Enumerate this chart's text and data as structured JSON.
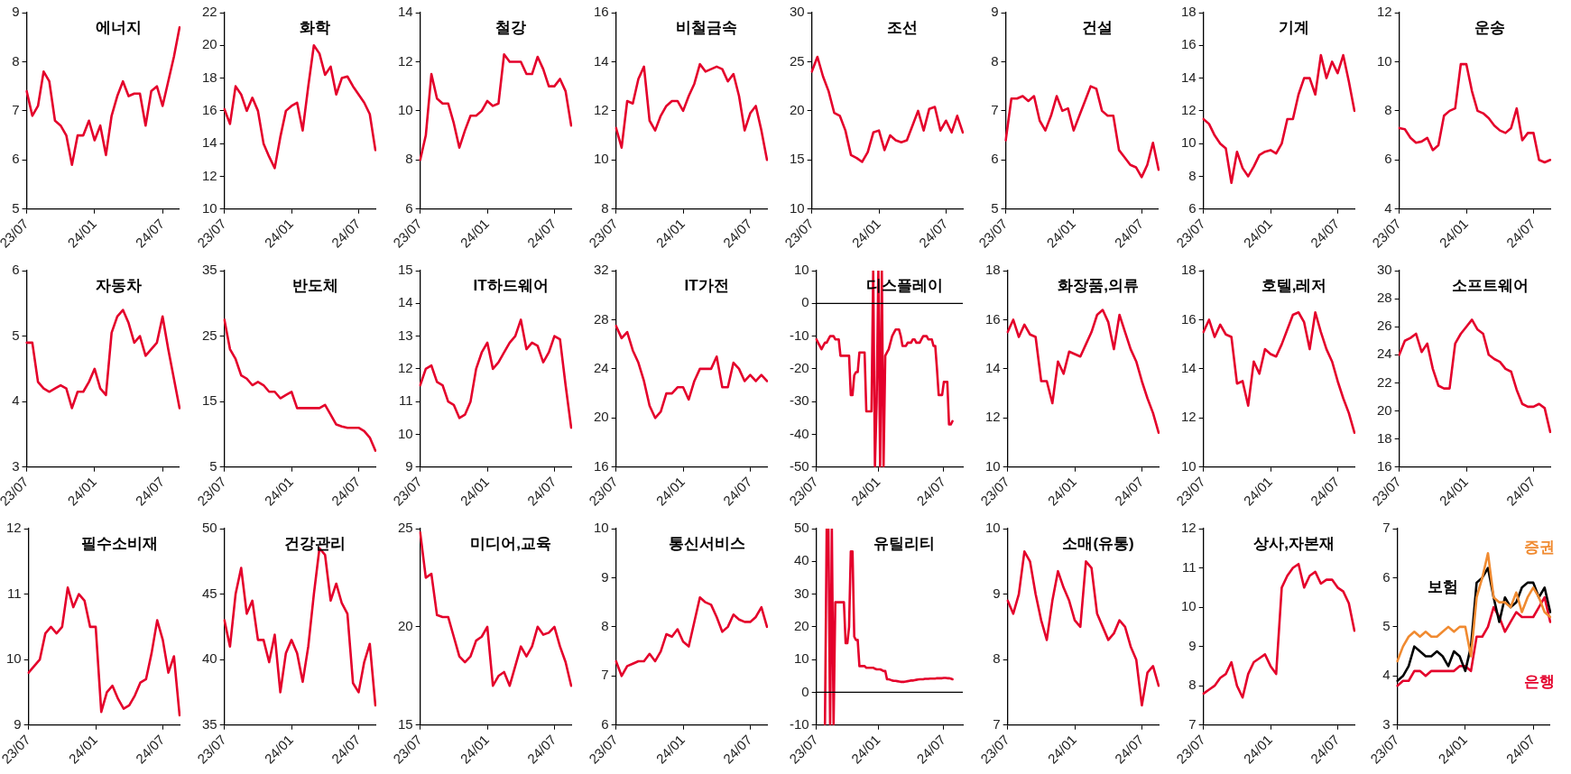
{
  "chart_data": [
    {
      "type": "line",
      "title": "에너지",
      "categories": [
        "23/07",
        null,
        null,
        null,
        null,
        null,
        null,
        null,
        null,
        null,
        null,
        null,
        "24/01",
        null,
        null,
        null,
        null,
        null,
        null,
        null,
        null,
        null,
        null,
        null,
        "24/07",
        null,
        null,
        null
      ],
      "series": [
        {
          "color": "#e4002b",
          "values": [
            7.4,
            6.9,
            7.1,
            7.8,
            7.6,
            6.8,
            6.7,
            6.5,
            5.9,
            6.5,
            6.5,
            6.8,
            6.4,
            6.7,
            6.1,
            6.9,
            7.3,
            7.6,
            7.3,
            7.35,
            7.35,
            6.7,
            7.4,
            7.5,
            7.1,
            7.6,
            8.1,
            8.7
          ]
        }
      ],
      "ylim": [
        5,
        9
      ],
      "yticks": [
        5,
        6,
        7,
        8,
        9
      ]
    },
    {
      "type": "line",
      "title": "화학",
      "categories": [
        "23/07",
        null,
        null,
        null,
        null,
        null,
        null,
        null,
        null,
        null,
        null,
        null,
        "24/01",
        null,
        null,
        null,
        null,
        null,
        null,
        null,
        null,
        null,
        null,
        null,
        "24/07",
        null,
        null,
        null
      ],
      "series": [
        {
          "color": "#e4002b",
          "values": [
            16.1,
            15.2,
            17.5,
            17.0,
            16.0,
            16.8,
            16.0,
            14.0,
            13.2,
            12.5,
            14.4,
            16.0,
            16.3,
            16.5,
            14.8,
            17.5,
            20.0,
            19.5,
            18.2,
            18.7,
            17.0,
            18.0,
            18.1,
            17.5,
            17.0,
            16.5,
            15.8,
            13.6
          ]
        }
      ],
      "ylim": [
        10,
        22
      ],
      "yticks": [
        10,
        12,
        14,
        16,
        18,
        20,
        22
      ]
    },
    {
      "type": "line",
      "title": "철강",
      "categories": [
        "23/07",
        null,
        null,
        null,
        null,
        null,
        null,
        null,
        null,
        null,
        null,
        null,
        "24/01",
        null,
        null,
        null,
        null,
        null,
        null,
        null,
        null,
        null,
        null,
        null,
        "24/07",
        null,
        null,
        null
      ],
      "series": [
        {
          "color": "#e4002b",
          "values": [
            8.0,
            9.0,
            11.5,
            10.5,
            10.3,
            10.3,
            9.5,
            8.5,
            9.2,
            9.8,
            9.8,
            10.0,
            10.4,
            10.2,
            10.3,
            12.3,
            12.0,
            12.0,
            12.0,
            11.5,
            11.5,
            12.2,
            11.7,
            11.0,
            11.0,
            11.3,
            10.8,
            9.4
          ]
        }
      ],
      "ylim": [
        6,
        14
      ],
      "yticks": [
        6,
        8,
        10,
        12,
        14
      ]
    },
    {
      "type": "line",
      "title": "비철금속",
      "categories": [
        "23/07",
        null,
        null,
        null,
        null,
        null,
        null,
        null,
        null,
        null,
        null,
        null,
        "24/01",
        null,
        null,
        null,
        null,
        null,
        null,
        null,
        null,
        null,
        null,
        null,
        "24/07",
        null,
        null,
        null
      ],
      "series": [
        {
          "color": "#e4002b",
          "values": [
            11.3,
            10.5,
            12.4,
            12.3,
            13.3,
            13.8,
            11.6,
            11.2,
            11.8,
            12.2,
            12.4,
            12.4,
            12.0,
            12.6,
            13.1,
            13.9,
            13.6,
            13.7,
            13.8,
            13.7,
            13.2,
            13.5,
            12.6,
            11.2,
            11.9,
            12.2,
            11.2,
            10.0
          ]
        }
      ],
      "ylim": [
        8,
        16
      ],
      "yticks": [
        8,
        10,
        12,
        14,
        16
      ]
    },
    {
      "type": "line",
      "title": "조선",
      "categories": [
        "23/07",
        null,
        null,
        null,
        null,
        null,
        null,
        null,
        null,
        null,
        null,
        null,
        "24/01",
        null,
        null,
        null,
        null,
        null,
        null,
        null,
        null,
        null,
        null,
        null,
        "24/07",
        null,
        null,
        null
      ],
      "series": [
        {
          "color": "#e4002b",
          "values": [
            24.0,
            25.5,
            23.5,
            22.0,
            19.8,
            19.5,
            18.0,
            15.5,
            15.2,
            14.8,
            15.8,
            17.8,
            18.0,
            16.0,
            17.5,
            17.0,
            16.8,
            17.0,
            18.5,
            20.0,
            18.0,
            20.2,
            20.4,
            18.0,
            19.0,
            17.8,
            19.5,
            17.8
          ]
        }
      ],
      "ylim": [
        10,
        30
      ],
      "yticks": [
        10,
        15,
        20,
        25,
        30
      ]
    },
    {
      "type": "line",
      "title": "건설",
      "categories": [
        "23/07",
        null,
        null,
        null,
        null,
        null,
        null,
        null,
        null,
        null,
        null,
        null,
        "24/01",
        null,
        null,
        null,
        null,
        null,
        null,
        null,
        null,
        null,
        null,
        null,
        "24/07",
        null,
        null,
        null
      ],
      "series": [
        {
          "color": "#e4002b",
          "values": [
            6.4,
            7.25,
            7.25,
            7.3,
            7.2,
            7.3,
            6.8,
            6.6,
            6.9,
            7.3,
            7.0,
            7.05,
            6.6,
            6.9,
            7.2,
            7.5,
            7.45,
            7.0,
            6.9,
            6.9,
            6.2,
            6.05,
            5.9,
            5.85,
            5.65,
            5.9,
            6.35,
            5.8
          ]
        }
      ],
      "ylim": [
        5,
        9
      ],
      "yticks": [
        5,
        6,
        7,
        8,
        9
      ]
    },
    {
      "type": "line",
      "title": "기계",
      "categories": [
        "23/07",
        null,
        null,
        null,
        null,
        null,
        null,
        null,
        null,
        null,
        null,
        null,
        "24/01",
        null,
        null,
        null,
        null,
        null,
        null,
        null,
        null,
        null,
        null,
        null,
        "24/07",
        null,
        null,
        null
      ],
      "series": [
        {
          "color": "#e4002b",
          "values": [
            11.5,
            11.2,
            10.5,
            10.0,
            9.7,
            7.6,
            9.5,
            8.5,
            8.0,
            8.6,
            9.3,
            9.5,
            9.6,
            9.4,
            10.0,
            11.5,
            11.5,
            13.0,
            14.0,
            14.0,
            13.0,
            15.4,
            14.0,
            15.0,
            14.3,
            15.4,
            13.8,
            12.0
          ]
        }
      ],
      "ylim": [
        6,
        18
      ],
      "yticks": [
        6,
        8,
        10,
        12,
        14,
        16,
        18
      ]
    },
    {
      "type": "line",
      "title": "운송",
      "categories": [
        "23/07",
        null,
        null,
        null,
        null,
        null,
        null,
        null,
        null,
        null,
        null,
        null,
        "24/01",
        null,
        null,
        null,
        null,
        null,
        null,
        null,
        null,
        null,
        null,
        null,
        "24/07",
        null,
        null,
        null
      ],
      "series": [
        {
          "color": "#e4002b",
          "values": [
            7.3,
            7.25,
            6.9,
            6.7,
            6.75,
            6.9,
            6.4,
            6.6,
            7.8,
            8.0,
            8.1,
            9.9,
            9.9,
            8.8,
            8.0,
            7.9,
            7.7,
            7.4,
            7.2,
            7.1,
            7.3,
            8.1,
            6.8,
            7.1,
            7.1,
            6.0,
            5.9,
            6.0
          ]
        }
      ],
      "ylim": [
        4,
        12
      ],
      "yticks": [
        4,
        6,
        8,
        10,
        12
      ]
    },
    {
      "type": "line",
      "title": "자동차",
      "categories": [
        "23/07",
        null,
        null,
        null,
        null,
        null,
        null,
        null,
        null,
        null,
        null,
        null,
        "24/01",
        null,
        null,
        null,
        null,
        null,
        null,
        null,
        null,
        null,
        null,
        null,
        "24/07",
        null,
        null,
        null
      ],
      "series": [
        {
          "color": "#e4002b",
          "values": [
            4.9,
            4.9,
            4.3,
            4.2,
            4.15,
            4.2,
            4.25,
            4.2,
            3.9,
            4.15,
            4.15,
            4.3,
            4.5,
            4.2,
            4.1,
            5.05,
            5.3,
            5.4,
            5.2,
            4.9,
            5.0,
            4.7,
            4.8,
            4.9,
            5.3,
            4.8,
            4.35,
            3.9
          ]
        }
      ],
      "ylim": [
        3,
        6
      ],
      "yticks": [
        3,
        4,
        5,
        6
      ]
    },
    {
      "type": "line",
      "title": "반도체",
      "categories": [
        "23/07",
        null,
        null,
        null,
        null,
        null,
        null,
        null,
        null,
        null,
        null,
        null,
        "24/01",
        null,
        null,
        null,
        null,
        null,
        null,
        null,
        null,
        null,
        null,
        null,
        "24/07",
        null,
        null,
        null
      ],
      "series": [
        {
          "color": "#e4002b",
          "values": [
            27.5,
            23.0,
            21.5,
            19.0,
            18.5,
            17.5,
            18.0,
            17.5,
            16.5,
            16.5,
            15.5,
            16.0,
            16.5,
            14.0,
            14.0,
            14.0,
            14.0,
            14.0,
            14.5,
            13.0,
            11.5,
            11.2,
            11.0,
            11.0,
            11.0,
            10.5,
            9.5,
            7.5
          ]
        }
      ],
      "ylim": [
        5,
        35
      ],
      "yticks": [
        5,
        15,
        25,
        35
      ]
    },
    {
      "type": "line",
      "title": "IT하드웨어",
      "categories": [
        "23/07",
        null,
        null,
        null,
        null,
        null,
        null,
        null,
        null,
        null,
        null,
        null,
        "24/01",
        null,
        null,
        null,
        null,
        null,
        null,
        null,
        null,
        null,
        null,
        null,
        "24/07",
        null,
        null,
        null
      ],
      "series": [
        {
          "color": "#e4002b",
          "values": [
            11.5,
            12.0,
            12.1,
            11.6,
            11.5,
            11.0,
            10.9,
            10.5,
            10.6,
            11.0,
            12.0,
            12.5,
            12.8,
            12.0,
            12.2,
            12.5,
            12.8,
            13.0,
            13.5,
            12.6,
            12.8,
            12.7,
            12.2,
            12.5,
            13.0,
            12.9,
            11.5,
            10.2
          ]
        }
      ],
      "ylim": [
        9,
        15
      ],
      "yticks": [
        9,
        10,
        11,
        12,
        13,
        14,
        15
      ]
    },
    {
      "type": "line",
      "title": "IT가전",
      "categories": [
        "23/07",
        null,
        null,
        null,
        null,
        null,
        null,
        null,
        null,
        null,
        null,
        null,
        "24/01",
        null,
        null,
        null,
        null,
        null,
        null,
        null,
        null,
        null,
        null,
        null,
        "24/07",
        null,
        null,
        null
      ],
      "series": [
        {
          "color": "#e4002b",
          "values": [
            27.5,
            26.5,
            27.0,
            25.5,
            24.5,
            23.0,
            21.0,
            20.0,
            20.5,
            22.0,
            22.0,
            22.5,
            22.5,
            21.5,
            23.0,
            24.0,
            24.0,
            24.0,
            25.0,
            22.5,
            22.5,
            24.5,
            24.0,
            23.0,
            23.5,
            23.0,
            23.5,
            23.0
          ]
        }
      ],
      "ylim": [
        16,
        32
      ],
      "yticks": [
        16,
        20,
        24,
        28,
        32
      ]
    },
    {
      "type": "line",
      "title": "디스플레이",
      "categories": [
        "23/07",
        null,
        null,
        null,
        null,
        null,
        null,
        null,
        null,
        null,
        null,
        null,
        null,
        null,
        null,
        null,
        null,
        null,
        null,
        null,
        null,
        null,
        null,
        null,
        null,
        null,
        null,
        null,
        null,
        null,
        null,
        null,
        null,
        null,
        null,
        null,
        "24/01",
        null,
        null,
        null,
        null,
        null,
        null,
        null,
        null,
        null,
        null,
        null,
        null,
        null,
        null,
        null,
        null,
        null,
        null,
        null,
        null,
        null,
        null,
        null,
        null,
        null,
        null,
        null,
        null,
        null,
        null,
        null,
        null,
        null,
        null,
        null,
        null,
        null,
        "24/07",
        null,
        null,
        null,
        null,
        null,
        null,
        null,
        null,
        null,
        null,
        null
      ],
      "series": [
        {
          "color": "#e4002b",
          "values": [
            -11,
            -12,
            -13,
            -14,
            -13,
            -12,
            -12,
            -11,
            -10,
            -10,
            -10,
            -11,
            -11,
            -11,
            -16,
            -16,
            -16,
            -16,
            -16,
            -16,
            -28,
            -28,
            -22,
            -21,
            -21,
            -15,
            -15,
            -15,
            -15,
            -33,
            -33,
            -33,
            -33,
            10,
            -50,
            -30,
            10,
            -50,
            10,
            -50,
            -16,
            -15,
            -14,
            -12,
            -10,
            -9,
            -8,
            -8,
            -8,
            -10,
            -13,
            -13,
            -13,
            -12,
            -12,
            -12,
            -11,
            -11,
            -12,
            -12,
            -12,
            -11,
            -10,
            -10,
            -10,
            -11,
            -11,
            -11,
            -13,
            -13,
            -20,
            -28,
            -28,
            -28,
            -24,
            -24,
            -24,
            -37,
            -37,
            -36,
            null,
            null,
            null,
            null,
            null,
            null
          ]
        }
      ],
      "ref_lines": [
        {
          "axis": "y",
          "value": 0,
          "color": "#000000"
        }
      ],
      "ylim": [
        -50,
        10
      ],
      "yticks": [
        -50,
        -40,
        -30,
        -20,
        -10,
        0,
        10
      ]
    },
    {
      "type": "line",
      "title": "화장품,의류",
      "categories": [
        "23/07",
        null,
        null,
        null,
        null,
        null,
        null,
        null,
        null,
        null,
        null,
        null,
        "24/01",
        null,
        null,
        null,
        null,
        null,
        null,
        null,
        null,
        null,
        null,
        null,
        "24/07",
        null,
        null,
        null
      ],
      "series": [
        {
          "color": "#e4002b",
          "values": [
            15.5,
            16.0,
            15.3,
            15.8,
            15.4,
            15.3,
            13.5,
            13.5,
            12.6,
            14.3,
            13.8,
            14.7,
            14.6,
            14.5,
            15.0,
            15.5,
            16.2,
            16.4,
            15.9,
            14.8,
            16.2,
            15.5,
            14.8,
            14.3,
            13.5,
            12.8,
            12.2,
            11.4
          ]
        }
      ],
      "ylim": [
        10,
        18
      ],
      "yticks": [
        10,
        12,
        14,
        16,
        18
      ]
    },
    {
      "type": "line",
      "title": "호텔,레저",
      "categories": [
        "23/07",
        null,
        null,
        null,
        null,
        null,
        null,
        null,
        null,
        null,
        null,
        null,
        "24/01",
        null,
        null,
        null,
        null,
        null,
        null,
        null,
        null,
        null,
        null,
        null,
        "24/07",
        null,
        null,
        null
      ],
      "series": [
        {
          "color": "#e4002b",
          "values": [
            15.5,
            16.0,
            15.3,
            15.8,
            15.4,
            15.3,
            13.4,
            13.5,
            12.5,
            14.3,
            13.8,
            14.8,
            14.6,
            14.5,
            15.0,
            15.6,
            16.2,
            16.3,
            15.9,
            14.8,
            16.3,
            15.5,
            14.8,
            14.3,
            13.5,
            12.8,
            12.2,
            11.4
          ]
        }
      ],
      "ylim": [
        10,
        18
      ],
      "yticks": [
        10,
        12,
        14,
        16,
        18
      ]
    },
    {
      "type": "line",
      "title": "소프트웨어",
      "categories": [
        "23/07",
        null,
        null,
        null,
        null,
        null,
        null,
        null,
        null,
        null,
        null,
        null,
        "24/01",
        null,
        null,
        null,
        null,
        null,
        null,
        null,
        null,
        null,
        null,
        null,
        "24/07",
        null,
        null,
        null
      ],
      "series": [
        {
          "color": "#e4002b",
          "values": [
            24.0,
            25.0,
            25.2,
            25.5,
            24.2,
            24.8,
            23.0,
            21.8,
            21.6,
            21.6,
            24.8,
            25.5,
            26.0,
            26.5,
            25.8,
            25.5,
            24.0,
            23.7,
            23.5,
            23.0,
            22.8,
            21.5,
            20.5,
            20.3,
            20.3,
            20.5,
            20.2,
            18.5
          ]
        }
      ],
      "ylim": [
        16,
        30
      ],
      "yticks": [
        16,
        18,
        20,
        22,
        24,
        26,
        28,
        30
      ]
    },
    {
      "type": "line",
      "title": "필수소비재",
      "categories": [
        "23/07",
        null,
        null,
        null,
        null,
        null,
        null,
        null,
        null,
        null,
        null,
        null,
        "24/01",
        null,
        null,
        null,
        null,
        null,
        null,
        null,
        null,
        null,
        null,
        null,
        "24/07",
        null,
        null,
        null
      ],
      "series": [
        {
          "color": "#e4002b",
          "values": [
            9.8,
            9.9,
            10.0,
            10.4,
            10.5,
            10.4,
            10.5,
            11.1,
            10.8,
            11.0,
            10.9,
            10.5,
            10.5,
            9.2,
            9.5,
            9.6,
            9.4,
            9.25,
            9.3,
            9.45,
            9.65,
            9.7,
            10.1,
            10.6,
            10.3,
            9.8,
            10.05,
            9.15
          ]
        }
      ],
      "ylim": [
        9,
        12
      ],
      "yticks": [
        9,
        10,
        11,
        12
      ]
    },
    {
      "type": "line",
      "title": "건강관리",
      "categories": [
        "23/07",
        null,
        null,
        null,
        null,
        null,
        null,
        null,
        null,
        null,
        null,
        null,
        "24/01",
        null,
        null,
        null,
        null,
        null,
        null,
        null,
        null,
        null,
        null,
        null,
        "24/07",
        null,
        null,
        null
      ],
      "series": [
        {
          "color": "#e4002b",
          "values": [
            43,
            41,
            45,
            47,
            43.5,
            44.5,
            41.5,
            41.5,
            39.8,
            41.9,
            37.5,
            40.5,
            41.5,
            40.5,
            38.3,
            41,
            45,
            48.5,
            48,
            44.5,
            45.8,
            44.3,
            43.5,
            38.2,
            37.5,
            39.8,
            41.2,
            36.5
          ]
        }
      ],
      "ylim": [
        35,
        50
      ],
      "yticks": [
        35,
        40,
        45,
        50
      ]
    },
    {
      "type": "line",
      "title": "미디어,교육",
      "categories": [
        "23/07",
        null,
        null,
        null,
        null,
        null,
        null,
        null,
        null,
        null,
        null,
        null,
        "24/01",
        null,
        null,
        null,
        null,
        null,
        null,
        null,
        null,
        null,
        null,
        null,
        "24/07",
        null,
        null,
        null
      ],
      "series": [
        {
          "color": "#e4002b",
          "values": [
            24.8,
            22.5,
            22.7,
            20.6,
            20.5,
            20.5,
            19.5,
            18.5,
            18.2,
            18.5,
            19.3,
            19.5,
            20.0,
            17.0,
            17.5,
            17.7,
            17.0,
            18.0,
            19.0,
            18.5,
            19.0,
            20.0,
            19.6,
            19.7,
            20.0,
            19.0,
            18.2,
            17.0
          ]
        }
      ],
      "ylim": [
        15,
        25
      ],
      "yticks": [
        15,
        20,
        25
      ]
    },
    {
      "type": "line",
      "title": "통신서비스",
      "categories": [
        "23/07",
        null,
        null,
        null,
        null,
        null,
        null,
        null,
        null,
        null,
        null,
        null,
        "24/01",
        null,
        null,
        null,
        null,
        null,
        null,
        null,
        null,
        null,
        null,
        null,
        "24/07",
        null,
        null,
        null
      ],
      "series": [
        {
          "color": "#e4002b",
          "values": [
            7.3,
            7.0,
            7.2,
            7.25,
            7.3,
            7.3,
            7.45,
            7.3,
            7.5,
            7.85,
            7.8,
            7.95,
            7.7,
            7.6,
            8.1,
            8.6,
            8.5,
            8.45,
            8.2,
            7.9,
            8.0,
            8.25,
            8.15,
            8.1,
            8.1,
            8.2,
            8.4,
            8.0
          ]
        }
      ],
      "ylim": [
        6,
        10
      ],
      "yticks": [
        6,
        7,
        8,
        9,
        10
      ]
    },
    {
      "type": "line",
      "title": "유틸리티",
      "categories": [
        "23/07",
        null,
        null,
        null,
        null,
        null,
        null,
        null,
        null,
        null,
        null,
        null,
        null,
        null,
        null,
        null,
        null,
        null,
        null,
        null,
        null,
        null,
        null,
        null,
        null,
        null,
        null,
        null,
        null,
        null,
        null,
        null,
        null,
        null,
        null,
        null,
        "24/01",
        null,
        null,
        null,
        null,
        null,
        null,
        null,
        null,
        null,
        null,
        null,
        null,
        null,
        null,
        null,
        null,
        null,
        null,
        null,
        null,
        null,
        null,
        null,
        null,
        null,
        null,
        null,
        null,
        null,
        null,
        null,
        null,
        null,
        null,
        null,
        null,
        null,
        "24/07",
        null,
        null,
        null,
        null,
        null,
        null,
        null,
        null,
        null,
        null,
        null
      ],
      "series": [
        {
          "color": "#e4002b",
          "values": [
            null,
            null,
            null,
            null,
            null,
            -10,
            50,
            50,
            -10,
            50,
            -10,
            27.5,
            27.5,
            27.5,
            27.5,
            27.5,
            27.5,
            15,
            15,
            20,
            43,
            43,
            17,
            16,
            16,
            8,
            8,
            8,
            8,
            7.5,
            7.5,
            7.5,
            7.5,
            7.5,
            7.2,
            7,
            7,
            7,
            6.8,
            6.5,
            6.5,
            4,
            4,
            3.8,
            3.6,
            3.5,
            3.5,
            3.4,
            3.3,
            3.2,
            3.2,
            3.2,
            3.3,
            3.4,
            3.5,
            3.6,
            3.6,
            3.7,
            3.8,
            3.9,
            4,
            4,
            4,
            4.1,
            4.1,
            4.1,
            4.2,
            4.2,
            4.2,
            4.2,
            4.3,
            4.3,
            4.3,
            4.3,
            4.4,
            4.4,
            4.3,
            4.3,
            4.2,
            4.0,
            null,
            null,
            null,
            null,
            null,
            null
          ]
        }
      ],
      "ref_lines": [
        {
          "axis": "y",
          "value": 0,
          "color": "#000000"
        }
      ],
      "ylim": [
        -10,
        50
      ],
      "yticks": [
        -10,
        0,
        10,
        20,
        30,
        40,
        50
      ]
    },
    {
      "type": "line",
      "title": "소매(유통)",
      "categories": [
        "23/07",
        null,
        null,
        null,
        null,
        null,
        null,
        null,
        null,
        null,
        null,
        null,
        "24/01",
        null,
        null,
        null,
        null,
        null,
        null,
        null,
        null,
        null,
        null,
        null,
        "24/07",
        null,
        null,
        null
      ],
      "series": [
        {
          "color": "#e4002b",
          "values": [
            8.9,
            8.7,
            9.0,
            9.65,
            9.5,
            9.0,
            8.6,
            8.3,
            8.9,
            9.35,
            9.1,
            8.9,
            8.6,
            8.5,
            9.5,
            9.4,
            8.7,
            8.5,
            8.3,
            8.4,
            8.6,
            8.5,
            8.2,
            8.0,
            7.3,
            7.8,
            7.9,
            7.6
          ]
        }
      ],
      "ylim": [
        7,
        10
      ],
      "yticks": [
        7,
        8,
        9,
        10
      ]
    },
    {
      "type": "line",
      "title": "상사,자본재",
      "categories": [
        "23/07",
        null,
        null,
        null,
        null,
        null,
        null,
        null,
        null,
        null,
        null,
        null,
        "24/01",
        null,
        null,
        null,
        null,
        null,
        null,
        null,
        null,
        null,
        null,
        null,
        "24/07",
        null,
        null,
        null
      ],
      "series": [
        {
          "color": "#e4002b",
          "values": [
            7.8,
            7.9,
            8.0,
            8.2,
            8.3,
            8.6,
            8.0,
            7.7,
            8.3,
            8.6,
            8.7,
            8.8,
            8.5,
            8.3,
            10.5,
            10.8,
            11.0,
            11.1,
            10.5,
            10.8,
            10.9,
            10.6,
            10.7,
            10.7,
            10.5,
            10.4,
            10.1,
            9.4
          ]
        }
      ],
      "ylim": [
        7,
        12
      ],
      "yticks": [
        7,
        8,
        9,
        10,
        11,
        12
      ]
    },
    {
      "type": "line",
      "categories": [
        "23/07",
        null,
        null,
        null,
        null,
        null,
        null,
        null,
        null,
        null,
        null,
        null,
        "24/01",
        null,
        null,
        null,
        null,
        null,
        null,
        null,
        null,
        null,
        null,
        null,
        "24/07",
        null,
        null,
        null
      ],
      "series": [
        {
          "name": "증권",
          "color": "#f08a30",
          "values": [
            4.3,
            4.6,
            4.8,
            4.9,
            4.8,
            4.9,
            4.8,
            4.8,
            4.9,
            5.0,
            4.9,
            5.0,
            5.0,
            4.4,
            5.6,
            6.0,
            6.5,
            5.6,
            5.5,
            5.5,
            5.4,
            5.7,
            5.3,
            5.6,
            5.8,
            5.6,
            5.3,
            5.2
          ]
        },
        {
          "name": "보험",
          "color": "#000000",
          "values": [
            3.9,
            4.0,
            4.2,
            4.6,
            4.5,
            4.4,
            4.4,
            4.5,
            4.4,
            4.2,
            4.5,
            4.4,
            4.1,
            4.6,
            5.9,
            6.0,
            6.2,
            5.6,
            5.1,
            5.6,
            5.4,
            5.5,
            5.8,
            5.9,
            5.9,
            5.6,
            5.8,
            5.3
          ]
        },
        {
          "name": "은행",
          "color": "#e4002b",
          "values": [
            3.8,
            3.9,
            3.9,
            4.1,
            4.1,
            4.0,
            4.1,
            4.1,
            4.1,
            4.1,
            4.1,
            4.2,
            4.2,
            4.1,
            4.8,
            4.8,
            5.0,
            5.4,
            5.2,
            4.9,
            5.1,
            5.3,
            5.2,
            5.2,
            5.2,
            5.4,
            5.6,
            5.1
          ]
        }
      ],
      "ylim": [
        3,
        7
      ],
      "yticks": [
        3,
        4,
        5,
        6,
        7
      ]
    }
  ]
}
